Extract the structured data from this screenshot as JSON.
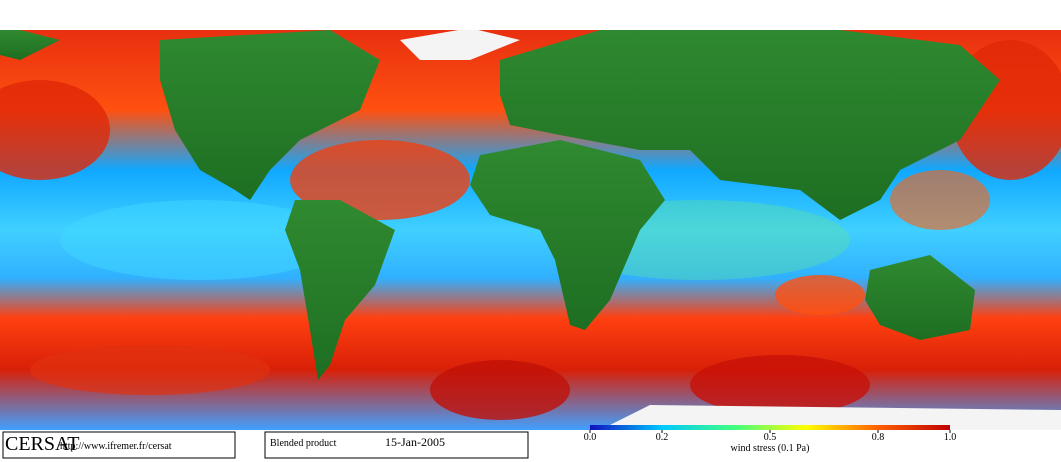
{
  "footer": {
    "logo": "CERSAT",
    "url": "http://www.ifremer.fr/cersat",
    "product": "Blended product",
    "date": "15-Jan-2005"
  },
  "colorbar": {
    "label": "wind stress (0.1 Pa)",
    "lim": [
      0,
      1
    ],
    "ticks": [
      {
        "value": 0,
        "label": "0.0"
      },
      0.2,
      0.5,
      0.8,
      {
        "value": 1,
        "label": "1.0"
      }
    ],
    "colors": [
      "#1010c0",
      "#00c8ff",
      "#40ff80",
      "#ffff00",
      "#ff6000",
      "#c00000"
    ]
  }
}
